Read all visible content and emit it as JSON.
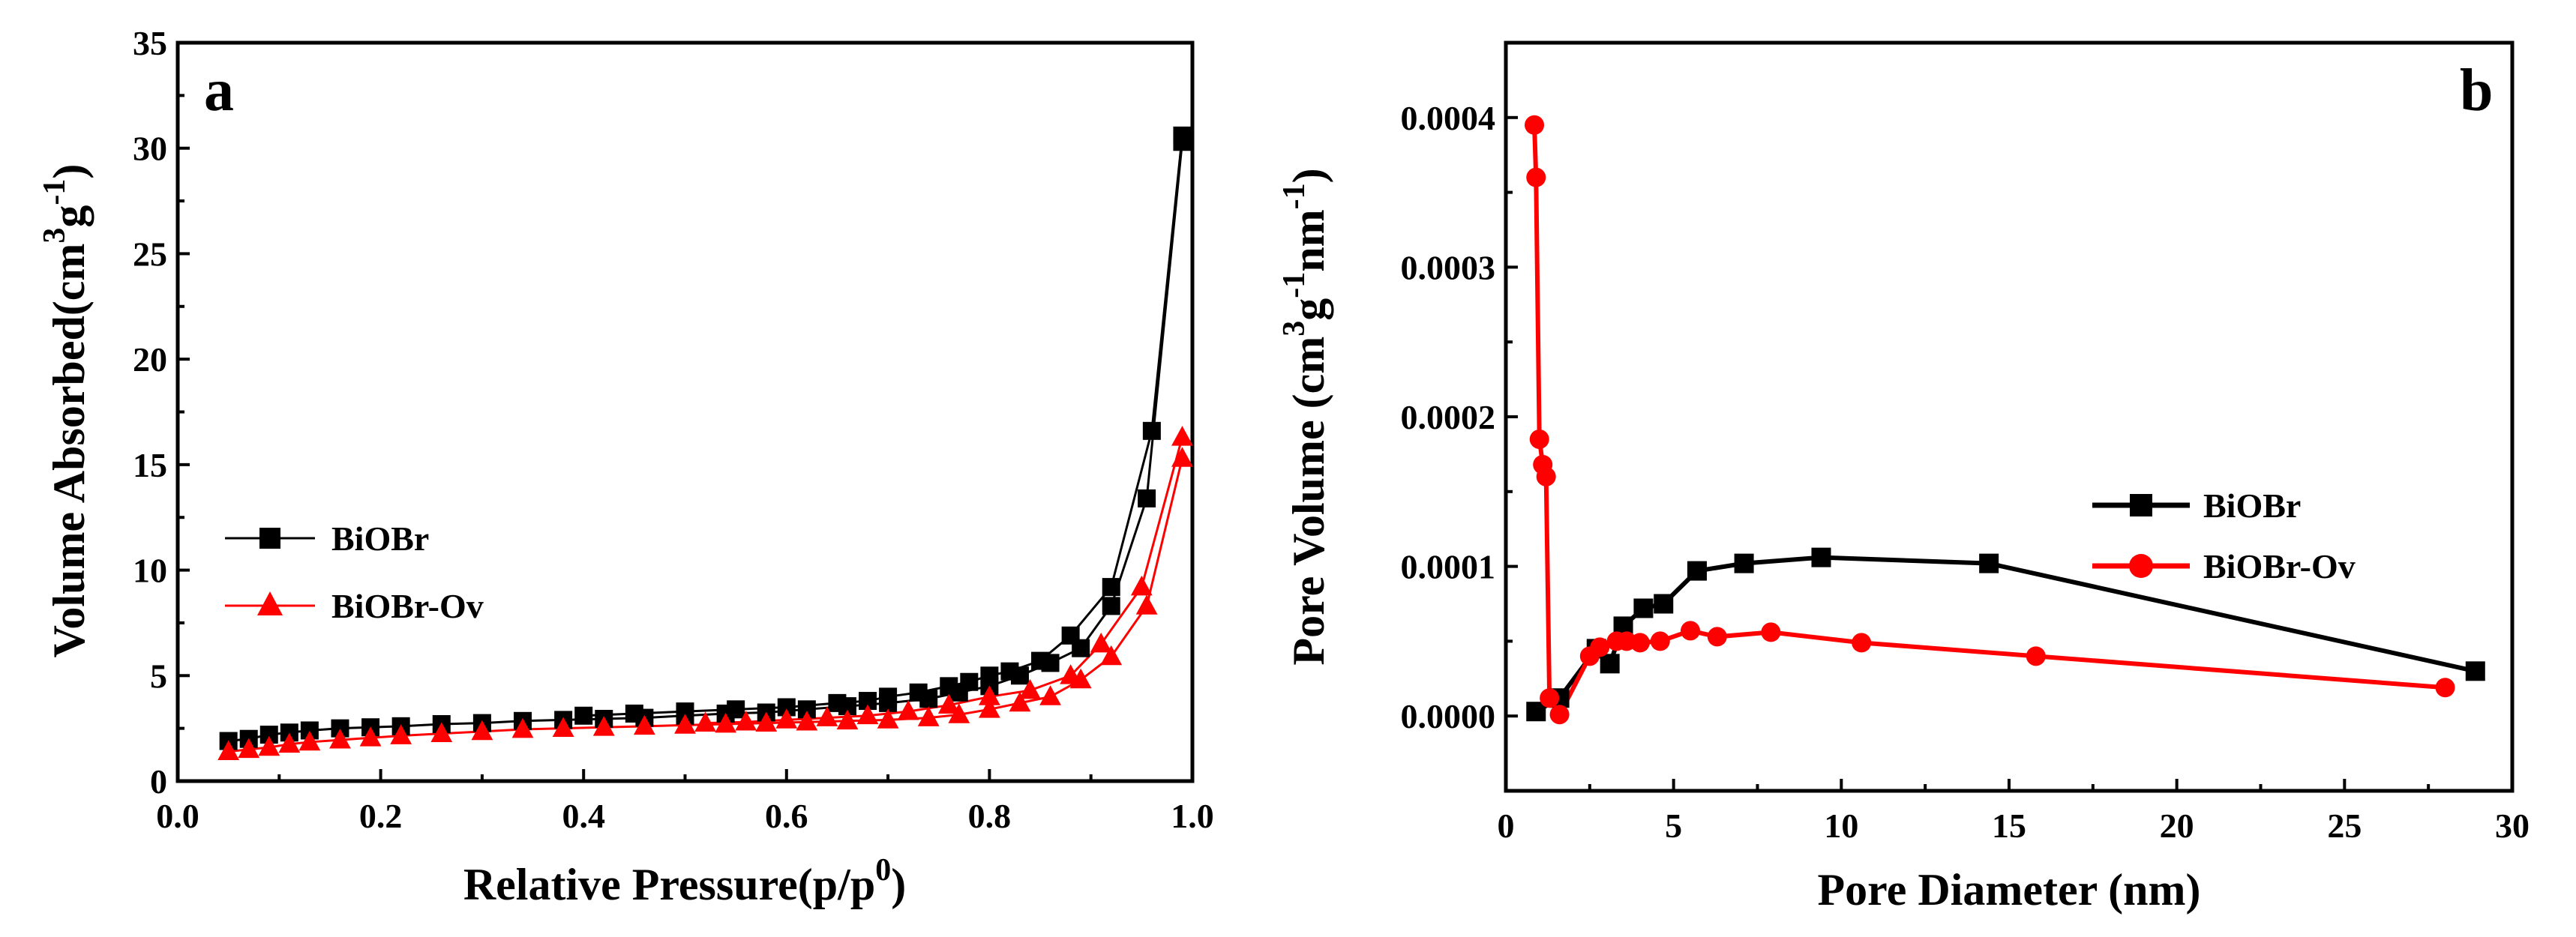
{
  "figure": {
    "panel_a_label": "a",
    "panel_b_label": "b"
  },
  "colors": {
    "bioobr": "#000000",
    "ov": "#ff0000"
  },
  "chart_data": [
    {
      "id": "a",
      "type": "line",
      "title": "",
      "xlabel": "Relative Pressure(p/p",
      "xlabel_sup": "0",
      "xlabel_end": ")",
      "ylabel": "Volume Absorbed(cm",
      "ylabel_sup1": "3",
      "ylabel_mid": "g",
      "ylabel_sup2": "-1",
      "ylabel_end": ")",
      "xlim": [
        0.0,
        1.0
      ],
      "ylim": [
        0,
        35
      ],
      "xticks": [
        0.0,
        0.2,
        0.4,
        0.6,
        0.8,
        1.0
      ],
      "xtick_labels": [
        "0.0",
        "0.2",
        "0.4",
        "0.6",
        "0.8",
        "1.0"
      ],
      "yticks": [
        0,
        5,
        10,
        15,
        20,
        25,
        30,
        35
      ],
      "ytick_labels": [
        "0",
        "5",
        "10",
        "15",
        "20",
        "25",
        "30",
        "35"
      ],
      "legend_position": "center-left",
      "series": [
        {
          "name": "BiOBr",
          "color": "#000000",
          "marker": "square",
          "curves": [
            {
              "x": [
                0.05,
                0.07,
                0.09,
                0.11,
                0.13,
                0.16,
                0.19,
                0.22,
                0.26,
                0.3,
                0.34,
                0.38,
                0.42,
                0.46,
                0.5,
                0.54,
                0.58,
                0.62,
                0.66,
                0.7,
                0.74,
                0.77,
                0.8,
                0.83,
                0.86,
                0.89,
                0.92,
                0.955,
                0.99
              ],
              "y": [
                1.9,
                2.0,
                2.2,
                2.3,
                2.4,
                2.5,
                2.55,
                2.6,
                2.7,
                2.75,
                2.85,
                2.9,
                2.95,
                3.0,
                3.1,
                3.2,
                3.25,
                3.4,
                3.55,
                3.7,
                3.9,
                4.2,
                4.5,
                5.0,
                5.6,
                6.3,
                8.3,
                13.4,
                30.3
              ]
            },
            {
              "x": [
                0.99,
                0.96,
                0.92,
                0.88,
                0.85,
                0.82,
                0.8,
                0.78,
                0.76,
                0.73,
                0.7,
                0.68,
                0.65,
                0.6,
                0.55,
                0.5,
                0.45,
                0.4
              ],
              "y": [
                30.6,
                16.6,
                9.2,
                6.9,
                5.7,
                5.2,
                5.0,
                4.7,
                4.5,
                4.2,
                4.0,
                3.8,
                3.7,
                3.5,
                3.4,
                3.3,
                3.2,
                3.1
              ]
            }
          ]
        },
        {
          "name": "BiOBr-Ov",
          "color": "#ff0000",
          "marker": "triangle",
          "curves": [
            {
              "x": [
                0.05,
                0.07,
                0.09,
                0.11,
                0.13,
                0.16,
                0.19,
                0.22,
                0.26,
                0.3,
                0.34,
                0.38,
                0.42,
                0.46,
                0.5,
                0.54,
                0.58,
                0.62,
                0.66,
                0.7,
                0.74,
                0.77,
                0.8,
                0.83,
                0.86,
                0.89,
                0.92,
                0.955,
                0.99
              ],
              "y": [
                1.4,
                1.5,
                1.6,
                1.75,
                1.85,
                1.95,
                2.05,
                2.15,
                2.25,
                2.35,
                2.45,
                2.5,
                2.55,
                2.6,
                2.65,
                2.7,
                2.75,
                2.8,
                2.85,
                2.9,
                3.0,
                3.15,
                3.4,
                3.7,
                4.0,
                4.8,
                5.9,
                8.3,
                15.3
              ]
            },
            {
              "x": [
                0.99,
                0.95,
                0.91,
                0.88,
                0.84,
                0.8,
                0.76,
                0.72,
                0.68,
                0.64,
                0.6,
                0.56,
                0.52
              ],
              "y": [
                16.3,
                9.2,
                6.5,
                5.0,
                4.3,
                4.0,
                3.6,
                3.3,
                3.1,
                3.0,
                2.9,
                2.8,
                2.75
              ]
            }
          ]
        }
      ]
    },
    {
      "id": "b",
      "type": "line",
      "title": "",
      "xlabel": "Pore Diameter (nm)",
      "ylabel": "Pore Volume (cm",
      "ylabel_sup1": "3",
      "ylabel_mid": "g",
      "ylabel_sup2": "-1",
      "ylabel_mid2": "nm",
      "ylabel_sup3": "-1",
      "ylabel_end": ")",
      "xlim": [
        0,
        30
      ],
      "ylim": [
        -5e-05,
        0.00045
      ],
      "xticks": [
        0,
        5,
        10,
        15,
        20,
        25,
        30
      ],
      "xtick_labels": [
        "0",
        "5",
        "10",
        "15",
        "20",
        "25",
        "30"
      ],
      "yticks": [
        0.0,
        0.0001,
        0.0002,
        0.0003,
        0.0004
      ],
      "ytick_labels": [
        "0.0000",
        "0.0001",
        "0.0002",
        "0.0003",
        "0.0004"
      ],
      "legend_position": "center-right",
      "series": [
        {
          "name": "BiOBr",
          "color": "#000000",
          "marker": "square",
          "x": [
            0.9,
            1.6,
            2.7,
            3.1,
            3.5,
            4.1,
            4.7,
            5.7,
            7.1,
            9.4,
            14.4,
            28.9
          ],
          "y": [
            3e-06,
            1.2e-05,
            4.5e-05,
            3.5e-05,
            6e-05,
            7.2e-05,
            7.5e-05,
            9.7e-05,
            0.000102,
            0.000106,
            0.000102,
            3e-05
          ]
        },
        {
          "name": "BiOBr-Ov",
          "color": "#ff0000",
          "marker": "circle",
          "x": [
            0.85,
            0.9,
            1.0,
            1.1,
            1.2,
            1.3,
            1.6,
            2.5,
            2.8,
            3.3,
            3.6,
            4.0,
            4.6,
            5.5,
            6.3,
            7.9,
            10.6,
            15.8,
            28.0
          ],
          "y": [
            0.000395,
            0.00036,
            0.000185,
            0.000168,
            0.00016,
            1.2e-05,
            1e-06,
            4e-05,
            4.6e-05,
            5e-05,
            5e-05,
            4.9e-05,
            5e-05,
            5.7e-05,
            5.3e-05,
            5.6e-05,
            4.9e-05,
            4e-05,
            1.9e-05
          ]
        }
      ]
    }
  ]
}
